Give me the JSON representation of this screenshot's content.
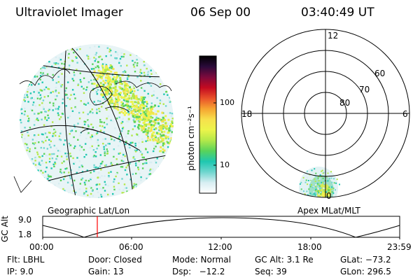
{
  "header": {
    "instrument": "Ultraviolet Imager",
    "date": "06 Sep 00",
    "time": "03:40:49 UT"
  },
  "colors": {
    "scale": [
      "#ffffff",
      "#d8eef2",
      "#6fd6cf",
      "#1fc7b0",
      "#59d35a",
      "#b3e84a",
      "#ecf44b",
      "#f7e04c",
      "#f6a431",
      "#e9512a",
      "#c40a20",
      "#7c0a3c",
      "#2a0a3a",
      "#000000"
    ],
    "time_marker": "#ff0000"
  },
  "colorbar": {
    "unit_label": "photon cm⁻²s⁻¹",
    "ticks": [
      "100",
      "10"
    ]
  },
  "left_panel": {
    "caption": "Geographic Lat/Lon"
  },
  "right_panel": {
    "caption": "Apex  MLat/MLT",
    "mlt_labels": {
      "top": "12",
      "left": "18",
      "right": "6",
      "bottom": "0"
    },
    "lat_labels": [
      "60",
      "70",
      "80"
    ]
  },
  "altitude_plot": {
    "axis_title": "GC Alt",
    "y_ticks": [
      "9.0",
      "1.8"
    ],
    "x_ticks": [
      "00:00",
      "06:00",
      "12:00",
      "18:00",
      "23:59"
    ]
  },
  "footer": {
    "flt": "Flt: LBHL",
    "ip": "IP:  9.0",
    "door": "Door: Closed",
    "gain": "Gain: 13",
    "mode": "Mode: Normal",
    "dsp": "Dsp:   −12.2",
    "gc_alt": "GC Alt: 3.1 Re",
    "seq": "Seq: 39",
    "glat": "GLat: −73.2",
    "glon": "GLon: 296.5"
  }
}
